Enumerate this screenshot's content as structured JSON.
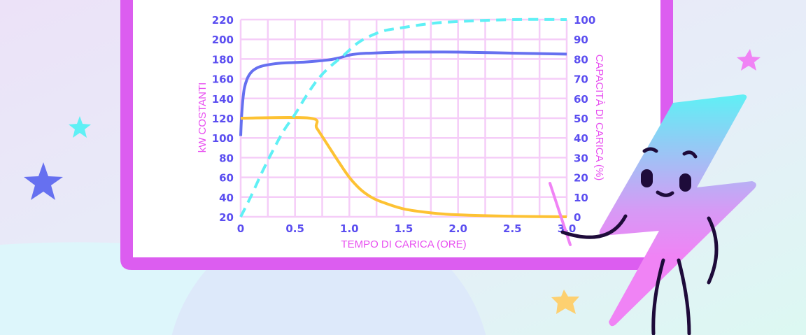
{
  "colors": {
    "board_border": "#dc5df0",
    "grid": "#f5cdf8",
    "tick_text": "#5b4ef0",
    "axis_label": "#e84ff0",
    "power_line": "#6670f0",
    "constant_line": "#fdc233",
    "capacity_line": "#5ff0f5"
  },
  "chart_data": {
    "type": "line",
    "title": "",
    "xlabel": "TEMPO DI CARICA (ORE)",
    "ylabel": "kW COSTANTI",
    "y2label": "CAPACITÀ DI CARICA (%)",
    "xlim": [
      0,
      3
    ],
    "ylim": [
      20,
      220
    ],
    "y2lim": [
      0,
      100
    ],
    "grid": true,
    "x_ticks": [
      "0",
      "0.5",
      "1.0",
      "1.5",
      "2.0",
      "2.5",
      "3.0"
    ],
    "y_ticks": [
      "20",
      "40",
      "60",
      "80",
      "100",
      "120",
      "140",
      "160",
      "180",
      "200",
      "220"
    ],
    "y2_ticks": [
      "0",
      "10",
      "20",
      "30",
      "40",
      "50",
      "60",
      "70",
      "80",
      "90",
      "100"
    ],
    "series": [
      {
        "axis": "left",
        "style": "solid",
        "color": "#6670f0",
        "x": [
          0,
          0.01,
          0.03,
          0.06,
          0.1,
          0.15,
          0.2,
          0.3,
          0.4,
          0.6,
          0.8,
          0.9,
          1.0,
          1.1,
          1.2,
          1.5,
          2.0,
          2.5,
          3.0
        ],
        "y": [
          102,
          125,
          148,
          160,
          167,
          171,
          173,
          175,
          176,
          177,
          179,
          181,
          184,
          185.5,
          186,
          187,
          187,
          186,
          185
        ]
      },
      {
        "axis": "left",
        "style": "solid",
        "color": "#fdc233",
        "x": [
          0,
          0.64,
          0.7,
          0.8,
          0.9,
          1.0,
          1.1,
          1.2,
          1.3,
          1.5,
          1.75,
          2.0,
          2.5,
          3.0
        ],
        "y": [
          120,
          120,
          110,
          93,
          76,
          60,
          48,
          40,
          35,
          28,
          24,
          22,
          20.5,
          20
        ]
      },
      {
        "axis": "right",
        "style": "dashed",
        "color": "#5ff0f5",
        "x": [
          0,
          0.1,
          0.2,
          0.3,
          0.4,
          0.5,
          0.6,
          0.7,
          0.8,
          0.95,
          1.1,
          1.3,
          1.5,
          1.75,
          2.0,
          2.5,
          3.0
        ],
        "y": [
          0,
          11,
          23,
          34,
          44,
          52,
          61,
          69,
          75,
          82,
          89,
          94,
          96,
          98,
          99,
          100,
          100
        ]
      }
    ]
  }
}
